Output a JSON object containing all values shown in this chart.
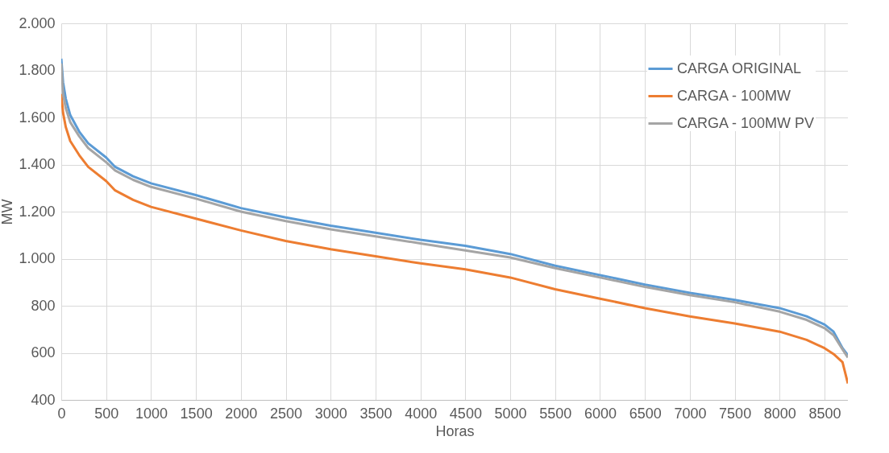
{
  "chart_data": {
    "type": "line",
    "xlabel": "Horas",
    "ylabel": "MW",
    "x": [
      0,
      20,
      50,
      100,
      200,
      300,
      500,
      600,
      800,
      1000,
      1500,
      2000,
      2500,
      3000,
      3500,
      4000,
      4500,
      5000,
      5500,
      6000,
      6500,
      7000,
      7500,
      8000,
      8300,
      8500,
      8600,
      8700,
      8760
    ],
    "series": [
      {
        "name": "CARGA ORIGINAL",
        "color": "#5b9bd5",
        "values": [
          1850,
          1750,
          1680,
          1610,
          1540,
          1490,
          1430,
          1390,
          1350,
          1320,
          1270,
          1215,
          1175,
          1140,
          1110,
          1080,
          1055,
          1020,
          970,
          930,
          890,
          855,
          825,
          790,
          755,
          720,
          690,
          620,
          590
        ]
      },
      {
        "name": "CARGA - 100MW",
        "color": "#ed7d31",
        "values": [
          1700,
          1620,
          1560,
          1500,
          1440,
          1390,
          1330,
          1290,
          1250,
          1220,
          1170,
          1120,
          1075,
          1040,
          1010,
          980,
          955,
          920,
          870,
          830,
          790,
          755,
          725,
          690,
          655,
          620,
          595,
          560,
          470
        ]
      },
      {
        "name": "CARGA - 100MW PV",
        "color": "#a5a5a5",
        "values": [
          1830,
          1700,
          1640,
          1580,
          1520,
          1470,
          1410,
          1375,
          1335,
          1305,
          1255,
          1200,
          1160,
          1125,
          1095,
          1065,
          1035,
          1005,
          960,
          920,
          880,
          845,
          815,
          775,
          740,
          705,
          675,
          615,
          580
        ]
      }
    ],
    "xlim": [
      0,
      8760
    ],
    "xticks": [
      0,
      500,
      1000,
      1500,
      2000,
      2500,
      3000,
      3500,
      4000,
      4500,
      5000,
      5500,
      6000,
      6500,
      7000,
      7500,
      8000,
      8500
    ],
    "ylim": [
      400,
      2000
    ],
    "yticks": [
      {
        "value": 400,
        "label": "400"
      },
      {
        "value": 600,
        "label": "600"
      },
      {
        "value": 800,
        "label": "800"
      },
      {
        "value": 1000,
        "label": "1.000"
      },
      {
        "value": 1200,
        "label": "1.200"
      },
      {
        "value": 1400,
        "label": "1.400"
      },
      {
        "value": 1600,
        "label": "1.600"
      },
      {
        "value": 1800,
        "label": "1.800"
      },
      {
        "value": 2000,
        "label": "2.000"
      }
    ],
    "grid": true,
    "legend": "top right",
    "marker": "none",
    "line_style": "solid"
  }
}
